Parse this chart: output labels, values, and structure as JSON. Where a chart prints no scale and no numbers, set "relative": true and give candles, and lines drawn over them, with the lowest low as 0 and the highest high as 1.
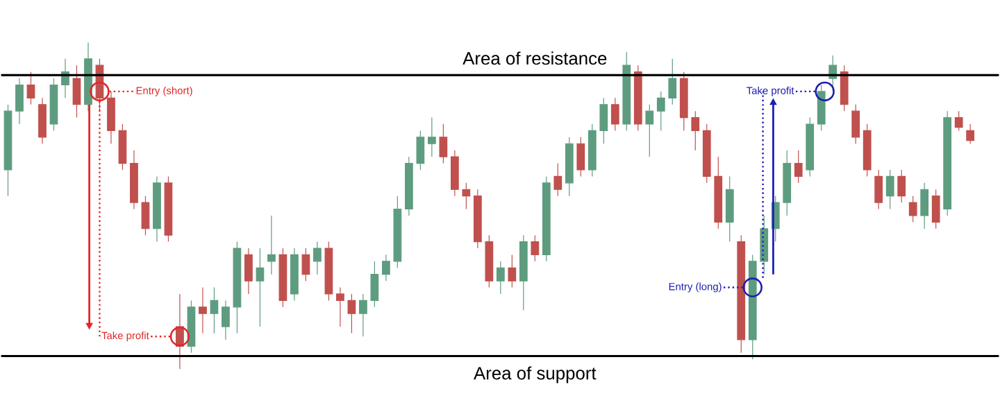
{
  "chart_data": {
    "type": "candlestick",
    "relative": true,
    "tick_labels": false,
    "categories": [
      null,
      null,
      null,
      null,
      null,
      null,
      null,
      null,
      null,
      null,
      null,
      null,
      null,
      null,
      null,
      null,
      null,
      null,
      null,
      null,
      null,
      null,
      null,
      null,
      null,
      null,
      null,
      null,
      null,
      null,
      null,
      null,
      null,
      null,
      null,
      null,
      null,
      null,
      null,
      null,
      null,
      null,
      null,
      null,
      null,
      null,
      null,
      null,
      null,
      null,
      null,
      null,
      null,
      null,
      null,
      null,
      null,
      null,
      null,
      null,
      null,
      null,
      null,
      null,
      null,
      null,
      null,
      null,
      null,
      null,
      null,
      null,
      null,
      null,
      null,
      null,
      null,
      null,
      null,
      null,
      null,
      null,
      null,
      null,
      null
    ],
    "ohlc": [
      [
        0.61,
        0.81,
        0.53,
        0.79
      ],
      [
        0.79,
        0.89,
        0.75,
        0.87
      ],
      [
        0.87,
        0.91,
        0.81,
        0.83
      ],
      [
        0.81,
        0.83,
        0.69,
        0.71
      ],
      [
        0.75,
        0.89,
        0.73,
        0.87
      ],
      [
        0.87,
        0.95,
        0.83,
        0.91
      ],
      [
        0.89,
        0.93,
        0.77,
        0.81
      ],
      [
        0.81,
        1.0,
        0.79,
        0.95
      ],
      [
        0.93,
        0.95,
        0.79,
        0.83
      ],
      [
        0.83,
        0.85,
        0.69,
        0.73
      ],
      [
        0.73,
        0.75,
        0.61,
        0.63
      ],
      [
        0.63,
        0.67,
        0.49,
        0.51
      ],
      [
        0.51,
        0.53,
        0.41,
        0.43
      ],
      [
        0.43,
        0.59,
        0.39,
        0.57
      ],
      [
        0.57,
        0.59,
        0.39,
        0.41
      ],
      [
        0.13,
        0.23,
        0.0,
        0.07
      ],
      [
        0.07,
        0.21,
        0.05,
        0.19
      ],
      [
        0.19,
        0.25,
        0.11,
        0.17
      ],
      [
        0.17,
        0.25,
        0.11,
        0.21
      ],
      [
        0.13,
        0.21,
        0.09,
        0.19
      ],
      [
        0.19,
        0.39,
        0.11,
        0.37
      ],
      [
        0.35,
        0.37,
        0.23,
        0.27
      ],
      [
        0.27,
        0.37,
        0.13,
        0.31
      ],
      [
        0.33,
        0.47,
        0.29,
        0.35
      ],
      [
        0.35,
        0.37,
        0.19,
        0.21
      ],
      [
        0.23,
        0.37,
        0.21,
        0.35
      ],
      [
        0.35,
        0.37,
        0.27,
        0.29
      ],
      [
        0.33,
        0.39,
        0.29,
        0.37
      ],
      [
        0.37,
        0.39,
        0.21,
        0.23
      ],
      [
        0.23,
        0.25,
        0.13,
        0.21
      ],
      [
        0.21,
        0.23,
        0.11,
        0.17
      ],
      [
        0.17,
        0.23,
        0.1,
        0.21
      ],
      [
        0.21,
        0.33,
        0.19,
        0.29
      ],
      [
        0.29,
        0.35,
        0.27,
        0.33
      ],
      [
        0.33,
        0.53,
        0.31,
        0.49
      ],
      [
        0.49,
        0.65,
        0.47,
        0.63
      ],
      [
        0.63,
        0.73,
        0.61,
        0.71
      ],
      [
        0.69,
        0.77,
        0.65,
        0.71
      ],
      [
        0.71,
        0.75,
        0.63,
        0.65
      ],
      [
        0.65,
        0.67,
        0.53,
        0.55
      ],
      [
        0.55,
        0.57,
        0.49,
        0.53
      ],
      [
        0.53,
        0.55,
        0.37,
        0.39
      ],
      [
        0.39,
        0.41,
        0.25,
        0.27
      ],
      [
        0.27,
        0.33,
        0.23,
        0.31
      ],
      [
        0.31,
        0.35,
        0.25,
        0.27
      ],
      [
        0.27,
        0.41,
        0.18,
        0.39
      ],
      [
        0.39,
        0.41,
        0.33,
        0.35
      ],
      [
        0.35,
        0.59,
        0.33,
        0.57
      ],
      [
        0.59,
        0.63,
        0.53,
        0.55
      ],
      [
        0.57,
        0.71,
        0.53,
        0.69
      ],
      [
        0.69,
        0.71,
        0.59,
        0.61
      ],
      [
        0.61,
        0.75,
        0.59,
        0.73
      ],
      [
        0.73,
        0.83,
        0.69,
        0.81
      ],
      [
        0.81,
        0.83,
        0.73,
        0.75
      ],
      [
        0.75,
        0.97,
        0.73,
        0.93
      ],
      [
        0.91,
        0.93,
        0.73,
        0.75
      ],
      [
        0.75,
        0.81,
        0.65,
        0.79
      ],
      [
        0.79,
        0.85,
        0.73,
        0.83
      ],
      [
        0.83,
        0.95,
        0.81,
        0.89
      ],
      [
        0.89,
        0.91,
        0.73,
        0.77
      ],
      [
        0.77,
        0.79,
        0.67,
        0.73
      ],
      [
        0.73,
        0.75,
        0.57,
        0.59
      ],
      [
        0.59,
        0.65,
        0.43,
        0.45
      ],
      [
        0.45,
        0.59,
        0.39,
        0.55
      ],
      [
        0.39,
        0.41,
        0.05,
        0.09
      ],
      [
        0.09,
        0.35,
        0.03,
        0.33
      ],
      [
        0.33,
        0.47,
        0.29,
        0.43
      ],
      [
        0.43,
        0.53,
        0.39,
        0.51
      ],
      [
        0.51,
        0.67,
        0.47,
        0.63
      ],
      [
        0.63,
        0.67,
        0.57,
        0.59
      ],
      [
        0.61,
        0.77,
        0.59,
        0.75
      ],
      [
        0.75,
        0.87,
        0.73,
        0.85
      ],
      [
        0.89,
        0.96,
        0.85,
        0.93
      ],
      [
        0.91,
        0.93,
        0.79,
        0.81
      ],
      [
        0.79,
        0.81,
        0.69,
        0.71
      ],
      [
        0.73,
        0.75,
        0.59,
        0.61
      ],
      [
        0.59,
        0.61,
        0.49,
        0.51
      ],
      [
        0.53,
        0.61,
        0.49,
        0.59
      ],
      [
        0.59,
        0.61,
        0.51,
        0.53
      ],
      [
        0.51,
        0.53,
        0.45,
        0.47
      ],
      [
        0.47,
        0.57,
        0.43,
        0.55
      ],
      [
        0.53,
        0.55,
        0.43,
        0.45
      ],
      [
        0.49,
        0.79,
        0.47,
        0.77
      ],
      [
        0.77,
        0.79,
        0.73,
        0.74
      ],
      [
        0.73,
        0.75,
        0.69,
        0.7
      ]
    ],
    "ref_lines": [
      {
        "axis": "y",
        "value": 0.9,
        "label": "Area of resistance",
        "color": "#000000"
      },
      {
        "axis": "y",
        "value": 0.04,
        "label": "Area of support",
        "color": "#000000"
      }
    ],
    "annotations": [
      "Entry (short)",
      "Take profit",
      "Entry (long)",
      "Take profit"
    ]
  }
}
